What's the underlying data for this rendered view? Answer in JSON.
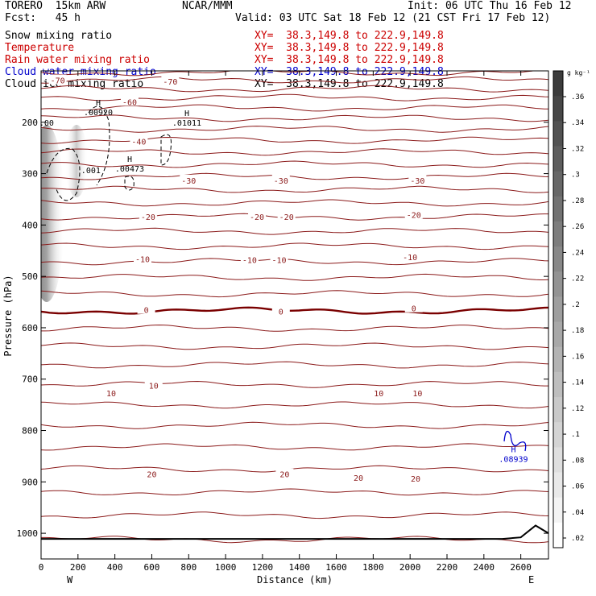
{
  "header": {
    "model": "TORERO  15km ARW",
    "org": "NCAR/MMM",
    "init": "Init: 06 UTC Thu 16 Feb 12",
    "fcst": "Fcst:   45 h",
    "valid": "Valid: 03 UTC Sat 18 Feb 12 (21 CST Fri 17 Feb 12)"
  },
  "fields": [
    {
      "name": "Snow mixing ratio",
      "xy": "XY=  38.3,149.8 to 222.9,149.8",
      "name_color": "#000000",
      "xy_color": "#cc0000"
    },
    {
      "name": "Temperature",
      "xy": "XY=  38.3,149.8 to 222.9,149.8",
      "name_color": "#cc0000",
      "xy_color": "#cc0000"
    },
    {
      "name": "Rain water mixing ratio",
      "xy": "XY=  38.3,149.8 to 222.9,149.8",
      "name_color": "#cc0000",
      "xy_color": "#cc0000"
    },
    {
      "name": "Cloud water mixing ratio",
      "xy": "XY=  38.3,149.8 to 222.9,149.8",
      "name_color": "#0000cc",
      "xy_color": "#0000cc"
    },
    {
      "name": "Cloud ice mixing ratio",
      "xy": "XY=  38.3,149.8 to 222.9,149.8",
      "name_color": "#000000",
      "xy_color": "#000000"
    }
  ],
  "colors": {
    "temperature": "#8b1a1a",
    "freezing": "#7a0000",
    "cloud_water": "#0000cc",
    "ice": "#000000",
    "terrain": "#000000"
  },
  "chart_data": {
    "type": "cross-section",
    "xlabel": "Distance (km)",
    "ylabel": "Pressure (hPa)",
    "x_ticks": [
      0,
      200,
      400,
      600,
      800,
      1000,
      1200,
      1400,
      1600,
      1800,
      2000,
      2200,
      2400,
      2600
    ],
    "xlim": [
      0,
      2750
    ],
    "y_ticks": [
      200,
      300,
      400,
      500,
      600,
      700,
      800,
      900,
      1000
    ],
    "ylim": [
      1050,
      100
    ],
    "x_end_labels": {
      "left": "W",
      "right": "E"
    },
    "colorbar": {
      "unit": "g kg⁻¹",
      "ticks": [
        ".36",
        ".34",
        ".32",
        ".3",
        ".28",
        ".26",
        ".24",
        ".22",
        ".2",
        ".18",
        ".16",
        ".14",
        ".12",
        ".1",
        ".08",
        ".06",
        ".04",
        ".02"
      ],
      "range": [
        0,
        0.38
      ]
    },
    "temperature_isotherm_levels_hPa": [
      103,
      118,
      135,
      152,
      172,
      192,
      213,
      235,
      258,
      282,
      306,
      331,
      357,
      384,
      412,
      441,
      471,
      502,
      534,
      567,
      601,
      636,
      672,
      710,
      750,
      790,
      832,
      875,
      920,
      965,
      1012
    ],
    "temperature_labels": [
      {
        "t": "-70",
        "x": 90,
        "p": 118
      },
      {
        "t": "-70",
        "x": 700,
        "p": 120
      },
      {
        "t": "-30",
        "x": 800,
        "p": 313
      },
      {
        "t": "-30",
        "x": 1300,
        "p": 313
      },
      {
        "t": "-30",
        "x": 2040,
        "p": 313
      },
      {
        "t": "-20",
        "x": 580,
        "p": 384
      },
      {
        "t": "-20",
        "x": 1170,
        "p": 384
      },
      {
        "t": "-20",
        "x": 1330,
        "p": 384
      },
      {
        "t": "-20",
        "x": 2020,
        "p": 380
      },
      {
        "t": "-10",
        "x": 550,
        "p": 466
      },
      {
        "t": "-10",
        "x": 1130,
        "p": 468
      },
      {
        "t": "-10",
        "x": 1290,
        "p": 468
      },
      {
        "t": "-10",
        "x": 2000,
        "p": 462
      },
      {
        "t": "0",
        "x": 570,
        "p": 565
      },
      {
        "t": "0",
        "x": 1300,
        "p": 568
      },
      {
        "t": "0",
        "x": 2020,
        "p": 562
      },
      {
        "t": "10",
        "x": 380,
        "p": 727
      },
      {
        "t": "10",
        "x": 610,
        "p": 712
      },
      {
        "t": "10",
        "x": 1830,
        "p": 727
      },
      {
        "t": "10",
        "x": 2040,
        "p": 727
      },
      {
        "t": "20",
        "x": 600,
        "p": 885
      },
      {
        "t": "20",
        "x": 1320,
        "p": 885
      },
      {
        "t": "20",
        "x": 1720,
        "p": 892
      },
      {
        "t": "20",
        "x": 2030,
        "p": 893
      },
      {
        "t": "-40",
        "x": 530,
        "p": 237
      },
      {
        "t": "-60",
        "x": 480,
        "p": 160
      }
    ],
    "extremes": [
      {
        "kind": "H",
        "value": ".00920",
        "x": 310,
        "p": 180
      },
      {
        "kind": "H",
        "value": ".01011",
        "x": 790,
        "p": 200
      },
      {
        "kind": "H",
        "value": ".00473",
        "x": 480,
        "p": 290
      },
      {
        "kind": "H",
        "value": ".08939",
        "x": 2560,
        "p": 855
      }
    ],
    "ice_labels": [
      {
        "t": ".001",
        "x": 270,
        "p": 293
      },
      {
        "t": ".00",
        "x": 30,
        "p": 200
      }
    ],
    "terrain_km": [
      0,
      2500,
      2600,
      2680,
      2750
    ],
    "terrain_hPa": [
      1011,
      1011,
      1008,
      985,
      1000
    ]
  }
}
